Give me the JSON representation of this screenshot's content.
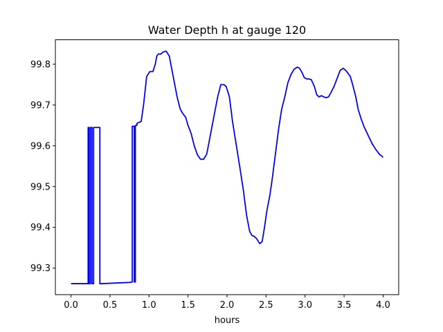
{
  "chart_data": {
    "type": "line",
    "title": "Water Depth h at gauge 120",
    "xlabel": "hours",
    "ylabel": "",
    "xlim": [
      -0.2,
      4.2
    ],
    "ylim": [
      99.235,
      99.86
    ],
    "xticks": [
      0.0,
      0.5,
      1.0,
      1.5,
      2.0,
      2.5,
      3.0,
      3.5,
      4.0
    ],
    "xtick_labels": [
      "0.0",
      "0.5",
      "1.0",
      "1.5",
      "2.0",
      "2.5",
      "3.0",
      "3.5",
      "4.0"
    ],
    "yticks": [
      99.3,
      99.4,
      99.5,
      99.6,
      99.7,
      99.8
    ],
    "ytick_labels": [
      "99.3",
      "99.4",
      "99.5",
      "99.6",
      "99.7",
      "99.8"
    ],
    "grid": false,
    "series": [
      {
        "color": "#0000ff",
        "x": [
          0.0,
          0.22,
          0.22,
          0.232,
          0.232,
          0.25,
          0.25,
          0.27,
          0.27,
          0.29,
          0.29,
          0.37,
          0.37,
          0.388,
          0.388,
          0.4,
          0.75,
          0.785,
          0.785,
          0.81,
          0.81,
          0.825,
          0.825,
          0.845,
          0.845,
          0.9,
          0.93,
          0.97,
          1.01,
          1.05,
          1.08,
          1.1,
          1.12,
          1.15,
          1.18,
          1.22,
          1.26,
          1.29,
          1.32,
          1.36,
          1.4,
          1.43,
          1.47,
          1.5,
          1.54,
          1.58,
          1.62,
          1.66,
          1.7,
          1.74,
          1.77,
          1.8,
          1.84,
          1.88,
          1.92,
          1.96,
          1.99,
          2.03,
          2.07,
          2.12,
          2.17,
          2.21,
          2.25,
          2.29,
          2.32,
          2.35,
          2.38,
          2.42,
          2.45,
          2.48,
          2.51,
          2.55,
          2.58,
          2.62,
          2.66,
          2.7,
          2.74,
          2.78,
          2.82,
          2.86,
          2.9,
          2.93,
          2.96,
          2.99,
          3.02,
          3.05,
          3.08,
          3.12,
          3.15,
          3.18,
          3.21,
          3.24,
          3.27,
          3.3,
          3.33,
          3.37,
          3.41,
          3.45,
          3.49,
          3.52,
          3.55,
          3.58,
          3.61,
          3.65,
          3.68,
          3.72,
          3.76,
          3.81,
          3.86,
          3.91,
          3.95,
          4.0
        ],
        "y": [
          99.262,
          99.262,
          99.645,
          99.645,
          99.262,
          99.262,
          99.645,
          99.645,
          99.262,
          99.262,
          99.645,
          99.645,
          99.262,
          99.262,
          99.262,
          99.262,
          99.265,
          99.266,
          99.648,
          99.648,
          99.266,
          99.266,
          99.65,
          99.65,
          99.655,
          99.66,
          99.7,
          99.77,
          99.782,
          99.782,
          99.8,
          99.82,
          99.825,
          99.825,
          99.83,
          99.832,
          99.82,
          99.79,
          99.76,
          99.72,
          99.69,
          99.68,
          99.67,
          99.65,
          99.63,
          99.6,
          99.578,
          99.567,
          99.567,
          99.58,
          99.61,
          99.64,
          99.68,
          99.72,
          99.75,
          99.75,
          99.745,
          99.72,
          99.66,
          99.6,
          99.54,
          99.49,
          99.43,
          99.39,
          99.38,
          99.378,
          99.372,
          99.36,
          99.365,
          99.4,
          99.44,
          99.48,
          99.52,
          99.58,
          99.64,
          99.69,
          99.72,
          99.755,
          99.775,
          99.788,
          99.793,
          99.79,
          99.78,
          99.767,
          99.764,
          99.764,
          99.762,
          99.745,
          99.725,
          99.72,
          99.723,
          99.72,
          99.718,
          99.72,
          99.73,
          99.745,
          99.765,
          99.785,
          99.79,
          99.785,
          99.778,
          99.77,
          99.75,
          99.72,
          99.69,
          99.665,
          99.645,
          99.625,
          99.605,
          99.59,
          99.58,
          99.572
        ]
      }
    ]
  }
}
